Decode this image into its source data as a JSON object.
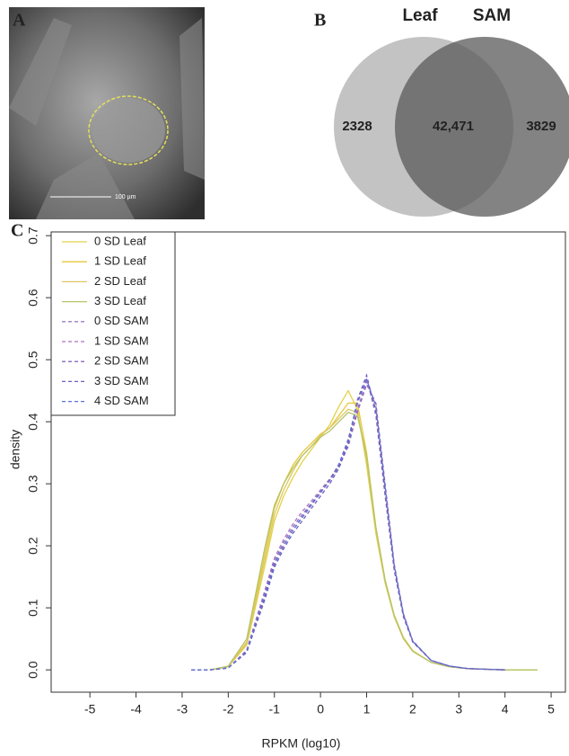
{
  "panel_a": {
    "label": "A",
    "scale_bar": "100 µm"
  },
  "chart_data": [
    {
      "type": "venn",
      "panel_label": "B",
      "sets": [
        "Leaf",
        "SAM"
      ],
      "values": [
        2328,
        42471,
        3829
      ],
      "value_labels": [
        "2328",
        "42,471",
        "3829"
      ],
      "colors": [
        "#b4b4b4",
        "#5a5a5a"
      ]
    },
    {
      "type": "line",
      "panel_label": "C",
      "xlabel": "RPKM (log10)",
      "ylabel": "density",
      "x": [
        -2.8,
        -2.4,
        -2,
        -1.6,
        -1.2,
        -1,
        -0.8,
        -0.6,
        -0.4,
        -0.2,
        0,
        0.2,
        0.4,
        0.6,
        0.8,
        1,
        1.2,
        1.4,
        1.6,
        1.8,
        2,
        2.4,
        2.8,
        3.2,
        3.6,
        4,
        4.4,
        4.7
      ],
      "xlim": [
        -5.84,
        5.31
      ],
      "xticks": [
        -5,
        -4,
        -3,
        -2,
        -1,
        0,
        1,
        2,
        3,
        4,
        5
      ],
      "ylim": [
        -0.036,
        0.706
      ],
      "yticks": [
        {
          "value": 0,
          "label": "0.0"
        },
        0.1,
        0.2,
        0.3,
        0.4,
        0.5,
        0.6,
        0.7
      ],
      "legend": "top-left",
      "series": [
        {
          "name": "0 SD Leaf",
          "color": "#e2d24a",
          "dash": false,
          "values": [
            null,
            0,
            0.005,
            0.04,
            0.17,
            0.24,
            0.28,
            0.31,
            0.335,
            0.355,
            0.375,
            0.395,
            0.425,
            0.45,
            0.42,
            0.33,
            0.22,
            0.14,
            0.085,
            0.05,
            0.03,
            0.012,
            0.005,
            0.002,
            0.001,
            0,
            0,
            0
          ]
        },
        {
          "name": "1 SD Leaf",
          "color": "#e8c83c",
          "dash": false,
          "values": [
            null,
            0,
            0.005,
            0.045,
            0.19,
            0.26,
            0.3,
            0.33,
            0.35,
            0.365,
            0.38,
            0.39,
            0.41,
            0.43,
            0.43,
            0.35,
            0.23,
            0.145,
            0.088,
            0.052,
            0.031,
            0.012,
            0.005,
            0.002,
            0.001,
            0,
            0,
            0
          ]
        },
        {
          "name": "2 SD Leaf",
          "color": "#dcc864",
          "dash": false,
          "values": [
            null,
            0,
            0.005,
            0.042,
            0.18,
            0.25,
            0.29,
            0.32,
            0.345,
            0.36,
            0.378,
            0.39,
            0.405,
            0.42,
            0.415,
            0.34,
            0.225,
            0.142,
            0.086,
            0.05,
            0.03,
            0.012,
            0.005,
            0.002,
            0.001,
            0,
            0,
            0
          ]
        },
        {
          "name": "3 SD Leaf",
          "color": "#b4c46a",
          "dash": false,
          "values": [
            null,
            0,
            0.006,
            0.05,
            0.2,
            0.265,
            0.3,
            0.325,
            0.345,
            0.36,
            0.375,
            0.385,
            0.4,
            0.415,
            0.41,
            0.345,
            0.23,
            0.145,
            0.087,
            0.051,
            0.03,
            0.012,
            0.005,
            0.002,
            0.001,
            0,
            0,
            0
          ]
        },
        {
          "name": "0 SD SAM",
          "color": "#9a7cc0",
          "dash": true,
          "values": [
            0,
            0,
            0.003,
            0.03,
            0.12,
            0.17,
            0.2,
            0.225,
            0.245,
            0.265,
            0.285,
            0.305,
            0.33,
            0.37,
            0.43,
            0.47,
            0.41,
            0.28,
            0.16,
            0.085,
            0.045,
            0.015,
            0.006,
            0.002,
            0.001,
            0,
            null,
            null
          ]
        },
        {
          "name": "1 SD SAM",
          "color": "#b070c0",
          "dash": true,
          "values": [
            0,
            0,
            0.003,
            0.032,
            0.13,
            0.18,
            0.21,
            0.235,
            0.255,
            0.272,
            0.29,
            0.308,
            0.33,
            0.365,
            0.42,
            0.465,
            0.42,
            0.29,
            0.165,
            0.088,
            0.046,
            0.015,
            0.006,
            0.002,
            0.001,
            0,
            null,
            null
          ]
        },
        {
          "name": "2 SD SAM",
          "color": "#8868b8",
          "dash": true,
          "values": [
            0,
            0,
            0.003,
            0.03,
            0.125,
            0.175,
            0.205,
            0.23,
            0.25,
            0.268,
            0.287,
            0.305,
            0.328,
            0.36,
            0.415,
            0.46,
            0.43,
            0.3,
            0.17,
            0.09,
            0.047,
            0.015,
            0.006,
            0.002,
            0.001,
            0,
            null,
            null
          ]
        },
        {
          "name": "3 SD SAM",
          "color": "#6a60c0",
          "dash": true,
          "values": [
            0,
            0,
            0.003,
            0.028,
            0.115,
            0.165,
            0.195,
            0.22,
            0.24,
            0.26,
            0.28,
            0.3,
            0.325,
            0.365,
            0.435,
            0.475,
            0.415,
            0.285,
            0.162,
            0.086,
            0.045,
            0.015,
            0.006,
            0.002,
            0.001,
            0,
            null,
            null
          ]
        },
        {
          "name": "4 SD SAM",
          "color": "#5c70d0",
          "dash": true,
          "values": [
            0,
            0,
            0.003,
            0.03,
            0.12,
            0.17,
            0.2,
            0.225,
            0.246,
            0.266,
            0.286,
            0.306,
            0.332,
            0.372,
            0.43,
            0.468,
            0.425,
            0.295,
            0.168,
            0.089,
            0.046,
            0.015,
            0.006,
            0.002,
            0.001,
            0,
            null,
            null
          ]
        }
      ]
    }
  ]
}
